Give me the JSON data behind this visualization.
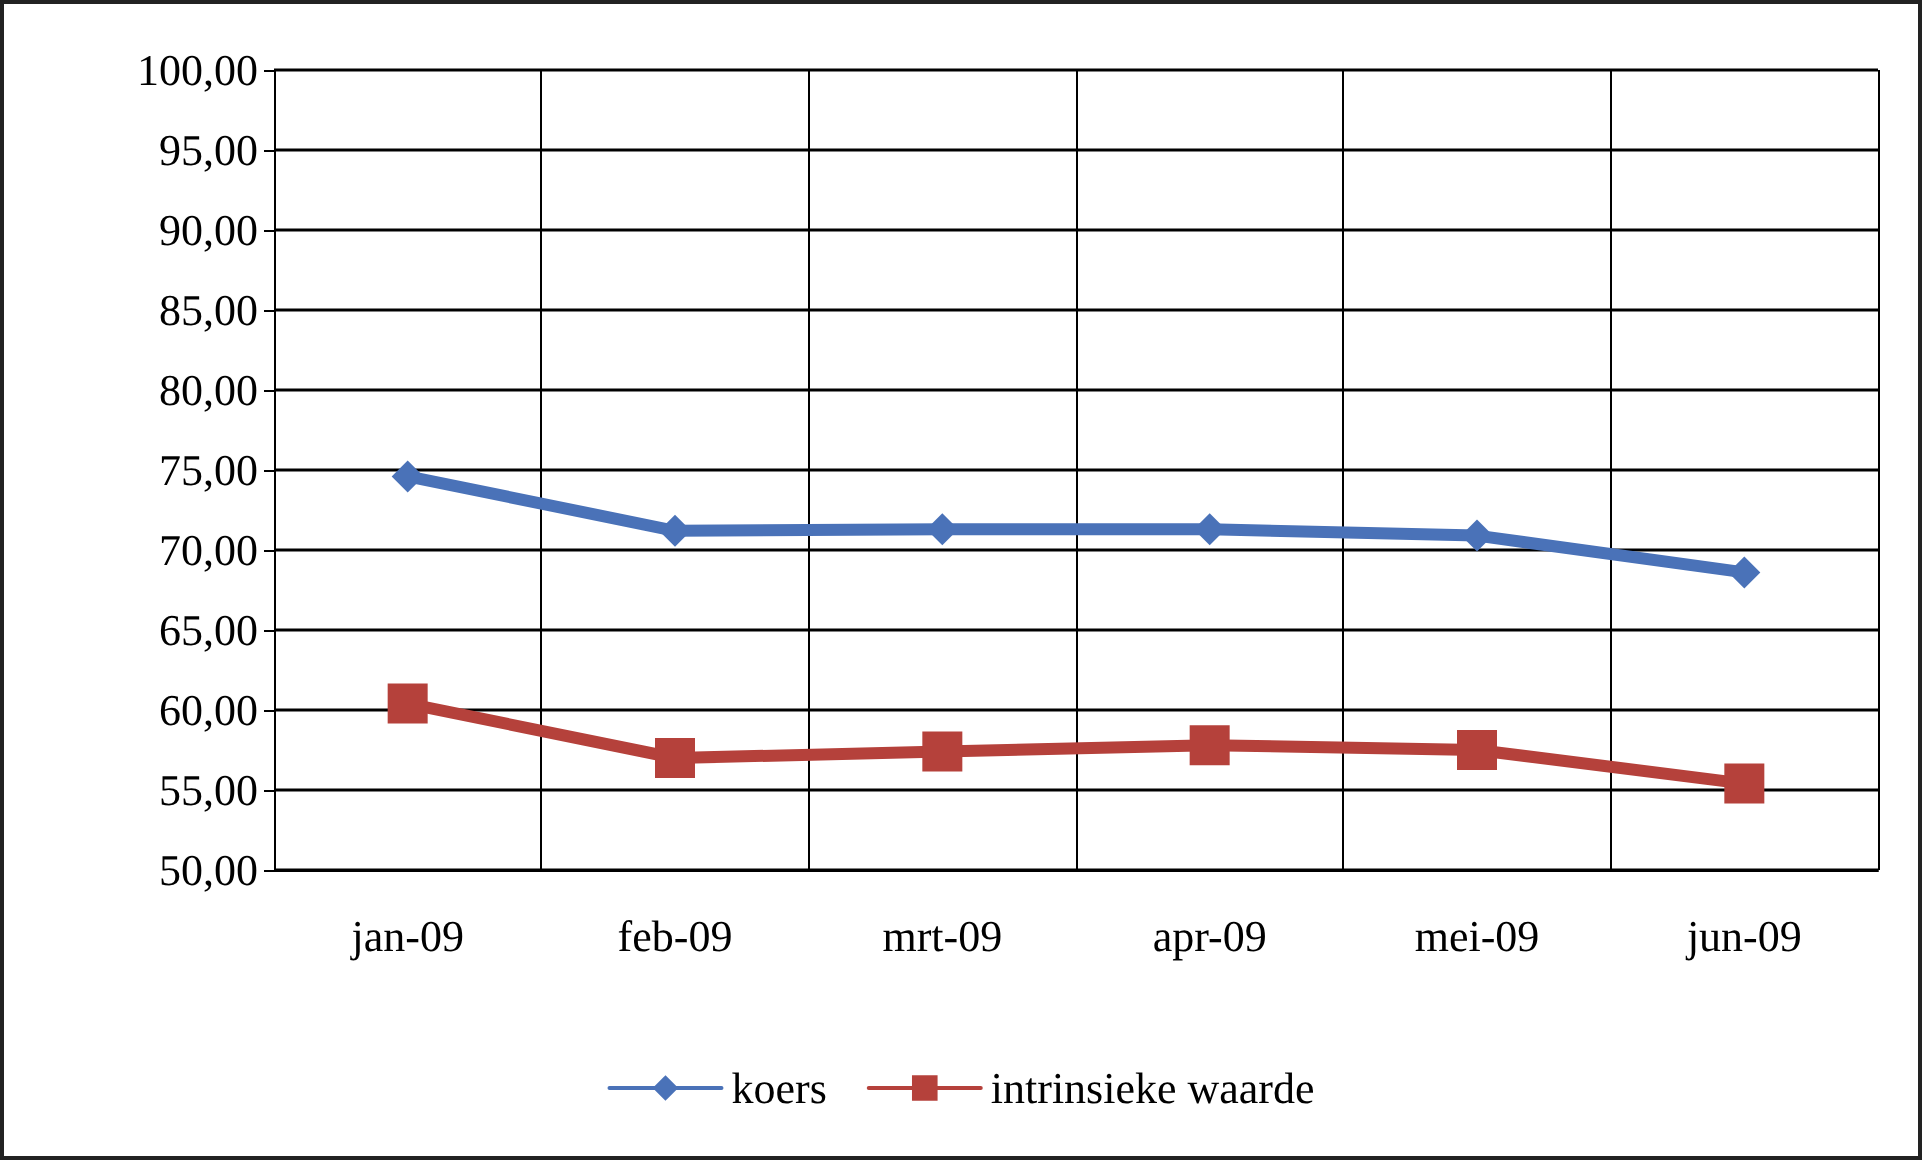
{
  "chart_data": {
    "type": "line",
    "categories": [
      "jan-09",
      "feb-09",
      "mrt-09",
      "apr-09",
      "mei-09",
      "jun-09"
    ],
    "series": [
      {
        "name": "koers",
        "color": "#4a72b8",
        "marker": "diamond",
        "values": [
          74.6,
          71.2,
          71.3,
          71.3,
          70.9,
          68.6
        ]
      },
      {
        "name": "intrinsieke waarde",
        "color": "#b5413b",
        "marker": "square",
        "values": [
          60.4,
          57.0,
          57.4,
          57.8,
          57.5,
          55.4
        ]
      }
    ],
    "ylim": [
      50,
      100
    ],
    "yticks": [
      {
        "value": 50,
        "label": "50,00"
      },
      {
        "value": 55,
        "label": "55,00"
      },
      {
        "value": 60,
        "label": "60,00"
      },
      {
        "value": 65,
        "label": "65,00"
      },
      {
        "value": 70,
        "label": "70,00"
      },
      {
        "value": 75,
        "label": "75,00"
      },
      {
        "value": 80,
        "label": "80,00"
      },
      {
        "value": 85,
        "label": "85,00"
      },
      {
        "value": 90,
        "label": "90,00"
      },
      {
        "value": 95,
        "label": "95,00"
      },
      {
        "value": 100,
        "label": "100,00"
      }
    ],
    "grid": true,
    "legend": "bottom",
    "line_style": "solid"
  }
}
